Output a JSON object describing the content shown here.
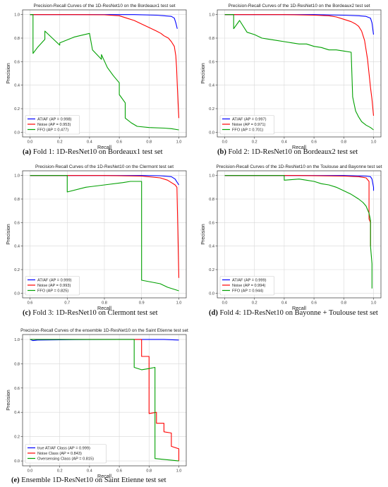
{
  "chart_data": [
    {
      "type": "line",
      "title": "Precision-Recall Curves of the 1D-ResNet10 on the Bordeaux1 test set",
      "xlabel": "Recall",
      "ylabel": "Precision",
      "xlim": [
        -0.05,
        1.05
      ],
      "ylim": [
        -0.04,
        1.04
      ],
      "xticks": [
        "0.0",
        "0.2",
        "0.4",
        "0.6",
        "0.8",
        "1.0"
      ],
      "yticks": [
        "0.0",
        "0.2",
        "0.4",
        "0.6",
        "0.8",
        "1.0"
      ],
      "grid": true,
      "legend_position": "lower-left",
      "caption": {
        "tag": "(a)",
        "text": " Fold 1: 1D-ResNet10 on Bordeaux1 test set"
      },
      "series": [
        {
          "name": "AT/AF (AP = 0.998)",
          "color": "#0000ff",
          "points": [
            [
              0,
              1
            ],
            [
              0.2,
              1
            ],
            [
              0.5,
              1
            ],
            [
              0.7,
              1
            ],
            [
              0.85,
              0.995
            ],
            [
              0.9,
              0.99
            ],
            [
              0.95,
              0.985
            ],
            [
              0.97,
              0.97
            ],
            [
              0.98,
              0.93
            ],
            [
              0.99,
              0.88
            ]
          ]
        },
        {
          "name": "Noise (AP = 0.953)",
          "color": "#ff0000",
          "points": [
            [
              0,
              1
            ],
            [
              0.3,
              1
            ],
            [
              0.5,
              0.998
            ],
            [
              0.6,
              0.99
            ],
            [
              0.65,
              0.97
            ],
            [
              0.7,
              0.95
            ],
            [
              0.75,
              0.92
            ],
            [
              0.8,
              0.89
            ],
            [
              0.85,
              0.86
            ],
            [
              0.88,
              0.84
            ],
            [
              0.9,
              0.82
            ],
            [
              0.93,
              0.8
            ],
            [
              0.95,
              0.77
            ],
            [
              0.97,
              0.73
            ],
            [
              0.98,
              0.65
            ],
            [
              0.985,
              0.55
            ],
            [
              0.99,
              0.4
            ],
            [
              0.995,
              0.25
            ],
            [
              1,
              0.12
            ]
          ]
        },
        {
          "name": "FFO (AP = 0.477)",
          "color": "#00a000",
          "points": [
            [
              0,
              1
            ],
            [
              0.02,
              1
            ],
            [
              0.02,
              0.67
            ],
            [
              0.05,
              0.72
            ],
            [
              0.1,
              0.79
            ],
            [
              0.1,
              0.86
            ],
            [
              0.2,
              0.74
            ],
            [
              0.2,
              0.76
            ],
            [
              0.3,
              0.81
            ],
            [
              0.4,
              0.84
            ],
            [
              0.42,
              0.7
            ],
            [
              0.48,
              0.62
            ],
            [
              0.48,
              0.66
            ],
            [
              0.52,
              0.55
            ],
            [
              0.52,
              0.55
            ],
            [
              0.56,
              0.48
            ],
            [
              0.6,
              0.42
            ],
            [
              0.6,
              0.32
            ],
            [
              0.64,
              0.25
            ],
            [
              0.64,
              0.12
            ],
            [
              0.68,
              0.08
            ],
            [
              0.72,
              0.05
            ],
            [
              0.8,
              0.04
            ],
            [
              0.9,
              0.035
            ],
            [
              0.95,
              0.03
            ],
            [
              1,
              0.02
            ]
          ]
        }
      ]
    },
    {
      "type": "line",
      "title": "Precision-Recall Curves of the 1D-ResNet10 on the Bordeaux2 test set",
      "xlabel": "Recall",
      "ylabel": "Precision",
      "xlim": [
        -0.05,
        1.05
      ],
      "ylim": [
        -0.04,
        1.04
      ],
      "xticks": [
        "0.0",
        "0.2",
        "0.4",
        "0.6",
        "0.8",
        "1.0"
      ],
      "yticks": [
        "0.0",
        "0.2",
        "0.4",
        "0.6",
        "0.8",
        "1.0"
      ],
      "grid": true,
      "legend_position": "lower-left",
      "caption": {
        "tag": "(b)",
        "text": " Fold 2: 1D-ResNet10 on Bordeaux2 test set"
      },
      "series": [
        {
          "name": "AT/AF (AP = 0.997)",
          "color": "#0000ff",
          "points": [
            [
              0,
              1
            ],
            [
              0.3,
              1
            ],
            [
              0.6,
              1
            ],
            [
              0.8,
              0.995
            ],
            [
              0.9,
              0.99
            ],
            [
              0.95,
              0.985
            ],
            [
              0.98,
              0.97
            ],
            [
              0.99,
              0.93
            ],
            [
              1,
              0.83
            ]
          ]
        },
        {
          "name": "Noise (AP = 0.971)",
          "color": "#ff0000",
          "points": [
            [
              0,
              1
            ],
            [
              0.4,
              1
            ],
            [
              0.6,
              0.995
            ],
            [
              0.7,
              0.99
            ],
            [
              0.75,
              0.98
            ],
            [
              0.8,
              0.96
            ],
            [
              0.85,
              0.94
            ],
            [
              0.88,
              0.92
            ],
            [
              0.9,
              0.9
            ],
            [
              0.92,
              0.86
            ],
            [
              0.94,
              0.78
            ],
            [
              0.96,
              0.62
            ],
            [
              0.97,
              0.5
            ],
            [
              0.98,
              0.38
            ],
            [
              0.99,
              0.28
            ],
            [
              1,
              0.14
            ]
          ]
        },
        {
          "name": "FFO (AP = 0.701)",
          "color": "#00a000",
          "points": [
            [
              0,
              1
            ],
            [
              0.06,
              1
            ],
            [
              0.06,
              0.88
            ],
            [
              0.1,
              0.95
            ],
            [
              0.15,
              0.85
            ],
            [
              0.2,
              0.83
            ],
            [
              0.25,
              0.8
            ],
            [
              0.3,
              0.79
            ],
            [
              0.35,
              0.78
            ],
            [
              0.4,
              0.77
            ],
            [
              0.45,
              0.76
            ],
            [
              0.5,
              0.75
            ],
            [
              0.55,
              0.75
            ],
            [
              0.6,
              0.73
            ],
            [
              0.65,
              0.72
            ],
            [
              0.7,
              0.7
            ],
            [
              0.75,
              0.7
            ],
            [
              0.8,
              0.69
            ],
            [
              0.85,
              0.68
            ],
            [
              0.86,
              0.3
            ],
            [
              0.88,
              0.18
            ],
            [
              0.9,
              0.13
            ],
            [
              0.92,
              0.09
            ],
            [
              0.95,
              0.06
            ],
            [
              0.98,
              0.04
            ],
            [
              1,
              0.02
            ]
          ]
        }
      ]
    },
    {
      "type": "line",
      "title": "Precision-Recall Curves of the 1D-ResNet10 on the Clermont test set",
      "xlabel": "Recall",
      "ylabel": "Precision",
      "xlim": [
        0.58,
        1.02
      ],
      "ylim": [
        -0.04,
        1.04
      ],
      "xticks": [
        "0.6",
        "0.7",
        "0.8",
        "0.9",
        "1.0"
      ],
      "yticks": [
        "0.0",
        "0.2",
        "0.4",
        "0.6",
        "0.8",
        "1.0"
      ],
      "grid": true,
      "legend_position": "lower-left",
      "caption": {
        "tag": "(c)",
        "text": " Fold 3: 1D-ResNet10 on Clermont test set"
      },
      "series": [
        {
          "name": "AT/AF (AP = 0.999)",
          "color": "#0000ff",
          "points": [
            [
              0.6,
              1
            ],
            [
              0.8,
              1
            ],
            [
              0.9,
              1
            ],
            [
              0.95,
              0.998
            ],
            [
              0.98,
              0.99
            ],
            [
              0.99,
              0.97
            ],
            [
              1,
              0.92
            ]
          ]
        },
        {
          "name": "Noise (AP = 0.993)",
          "color": "#ff0000",
          "points": [
            [
              0.6,
              1
            ],
            [
              0.8,
              1
            ],
            [
              0.9,
              0.995
            ],
            [
              0.95,
              0.98
            ],
            [
              0.97,
              0.96
            ],
            [
              0.98,
              0.94
            ],
            [
              0.99,
              0.92
            ],
            [
              0.995,
              0.9
            ],
            [
              1,
              0.13
            ]
          ]
        },
        {
          "name": "FFO (AP = 0.825)",
          "color": "#00a000",
          "points": [
            [
              0.6,
              1
            ],
            [
              0.7,
              1
            ],
            [
              0.7,
              0.86
            ],
            [
              0.75,
              0.9
            ],
            [
              0.8,
              0.92
            ],
            [
              0.85,
              0.94
            ],
            [
              0.87,
              0.95
            ],
            [
              0.87,
              0.95
            ],
            [
              0.9,
              0.95
            ],
            [
              0.9,
              0.11
            ],
            [
              0.95,
              0.08
            ],
            [
              0.97,
              0.05
            ],
            [
              1,
              0.02
            ]
          ]
        }
      ]
    },
    {
      "type": "line",
      "title": "Precision-Recall Curves of the 1D-ResNet10 on the Toulouse and Bayonne test set",
      "xlabel": "Recall",
      "ylabel": "Precision",
      "xlim": [
        -0.05,
        1.05
      ],
      "ylim": [
        -0.04,
        1.04
      ],
      "xticks": [
        "0.0",
        "0.2",
        "0.4",
        "0.6",
        "0.8",
        "1.0"
      ],
      "yticks": [
        "0.0",
        "0.2",
        "0.4",
        "0.6",
        "0.8",
        "1.0"
      ],
      "grid": true,
      "legend_position": "lower-left",
      "caption": {
        "tag": "(d)",
        "text": " Fold 4: 1D-ResNet10 on Bayonne + Toulouse test set"
      },
      "series": [
        {
          "name": "AT/AF (AP = 0.999)",
          "color": "#0000ff",
          "points": [
            [
              0,
              1
            ],
            [
              0.5,
              1
            ],
            [
              0.8,
              1
            ],
            [
              0.95,
              0.995
            ],
            [
              0.98,
              0.99
            ],
            [
              0.99,
              0.97
            ],
            [
              1,
              0.9
            ],
            [
              1,
              0.87
            ]
          ]
        },
        {
          "name": "Noise (AP = 0.994)",
          "color": "#ff0000",
          "points": [
            [
              0,
              1
            ],
            [
              0.5,
              1
            ],
            [
              0.8,
              0.995
            ],
            [
              0.9,
              0.99
            ],
            [
              0.95,
              0.98
            ],
            [
              0.97,
              0.95
            ],
            [
              0.97,
              0.63
            ],
            [
              0.98,
              0.6
            ],
            [
              0.98,
              0.4
            ]
          ]
        },
        {
          "name": "FFO (AP = 0.944)",
          "color": "#00a000",
          "points": [
            [
              0,
              1
            ],
            [
              0.4,
              1
            ],
            [
              0.4,
              0.96
            ],
            [
              0.5,
              0.97
            ],
            [
              0.55,
              0.96
            ],
            [
              0.6,
              0.95
            ],
            [
              0.65,
              0.93
            ],
            [
              0.7,
              0.92
            ],
            [
              0.75,
              0.9
            ],
            [
              0.8,
              0.87
            ],
            [
              0.85,
              0.84
            ],
            [
              0.9,
              0.8
            ],
            [
              0.93,
              0.77
            ],
            [
              0.95,
              0.74
            ],
            [
              0.97,
              0.68
            ],
            [
              0.98,
              0.62
            ],
            [
              0.98,
              0.4
            ],
            [
              0.99,
              0.25
            ],
            [
              0.99,
              0.04
            ]
          ]
        }
      ]
    },
    {
      "type": "line",
      "title": "Precision-Recall Curves of the ensemble 1D-ResNet10 on the Saint Etienne test set",
      "xlabel": "Recall",
      "ylabel": "Precision",
      "xlim": [
        -0.05,
        1.05
      ],
      "ylim": [
        -0.04,
        1.04
      ],
      "xticks": [
        "0.0",
        "0.2",
        "0.4",
        "0.6",
        "0.8",
        "1.0"
      ],
      "yticks": [
        "0.0",
        "0.2",
        "0.4",
        "0.6",
        "0.8",
        "1.0"
      ],
      "grid": true,
      "legend_position": "lower-left",
      "caption": {
        "tag": "(e)",
        "text": " Ensemble 1D-ResNet10 on Saint Etienne test set"
      },
      "series": [
        {
          "name": "true AT/AF Class (AP = 0.999)",
          "color": "#0000ff",
          "points": [
            [
              0,
              1
            ],
            [
              0.02,
              0.99
            ],
            [
              0.05,
              0.995
            ],
            [
              0.3,
              0.998
            ],
            [
              0.6,
              1
            ],
            [
              0.9,
              1
            ],
            [
              1,
              0.995
            ]
          ]
        },
        {
          "name": "Noise Class (AP = 0.843)",
          "color": "#ff0000",
          "points": [
            [
              0,
              1
            ],
            [
              0.7,
              1
            ],
            [
              0.75,
              1
            ],
            [
              0.75,
              0.86
            ],
            [
              0.8,
              0.86
            ],
            [
              0.8,
              0.39
            ],
            [
              0.85,
              0.4
            ],
            [
              0.85,
              0.31
            ],
            [
              0.9,
              0.31
            ],
            [
              0.9,
              0.24
            ],
            [
              0.95,
              0.23
            ],
            [
              0.95,
              0.12
            ],
            [
              1,
              0.1
            ],
            [
              1,
              0.0
            ]
          ]
        },
        {
          "name": "Oversensing Class (AP = 0.815)",
          "color": "#00a000",
          "points": [
            [
              0,
              1
            ],
            [
              0.7,
              1
            ],
            [
              0.7,
              0.77
            ],
            [
              0.75,
              0.75
            ],
            [
              0.8,
              0.76
            ],
            [
              0.84,
              0.77
            ],
            [
              0.84,
              0.3
            ],
            [
              0.84,
              0.02
            ],
            [
              1,
              0.0
            ]
          ]
        }
      ]
    }
  ]
}
